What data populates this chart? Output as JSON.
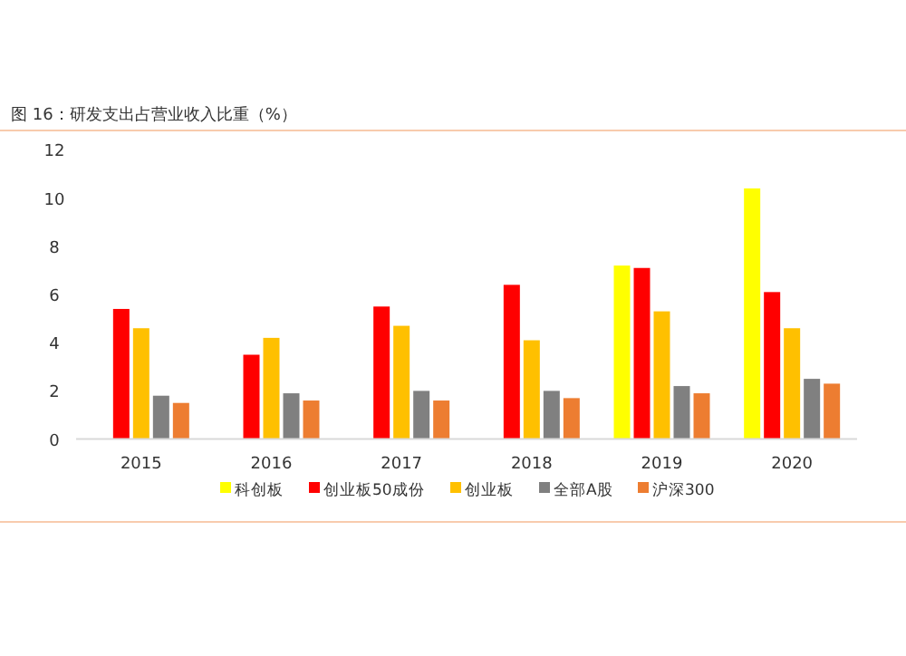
{
  "chart_data": {
    "type": "bar",
    "title": "图 16：研发支出占营业收入比重（%）",
    "categories": [
      "2015",
      "2016",
      "2017",
      "2018",
      "2019",
      "2020"
    ],
    "series": [
      {
        "name": "科创板",
        "color": "#ffff00",
        "values": [
          null,
          null,
          null,
          null,
          7.2,
          10.4
        ]
      },
      {
        "name": "创业板50成份",
        "color": "#ff0000",
        "values": [
          5.4,
          3.5,
          5.5,
          6.4,
          7.1,
          6.1
        ]
      },
      {
        "name": "创业板",
        "color": "#ffc000",
        "values": [
          4.6,
          4.2,
          4.7,
          4.1,
          5.3,
          4.6
        ]
      },
      {
        "name": "全部A股",
        "color": "#808080",
        "values": [
          1.8,
          1.9,
          2.0,
          2.0,
          2.2,
          2.5
        ]
      },
      {
        "name": "沪深300",
        "color": "#ed7d31",
        "values": [
          1.5,
          1.6,
          1.6,
          1.7,
          1.9,
          2.3
        ]
      }
    ],
    "ylim": [
      0,
      12
    ],
    "yticks": [
      0,
      2,
      4,
      6,
      8,
      10,
      12
    ],
    "grid": false,
    "legend": "bottom"
  }
}
